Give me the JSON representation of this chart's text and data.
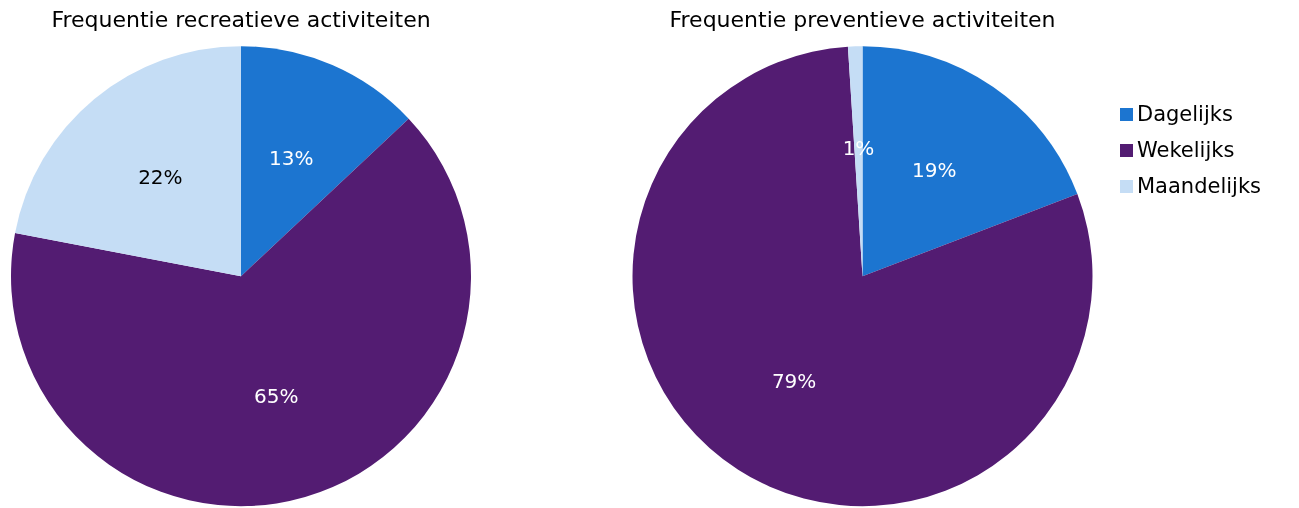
{
  "chart_data": [
    {
      "type": "pie",
      "title": "Frequentie recreatieve activiteiten",
      "categories": [
        null,
        null,
        null
      ],
      "values": [
        13,
        65,
        22
      ],
      "value_labels": [
        "13%",
        "65%",
        "22%"
      ],
      "colors": [
        "#1c75d0",
        "#531c72",
        "#c5ddf5"
      ],
      "legend": false
    },
    {
      "type": "pie",
      "title": "Frequentie preventieve activiteiten",
      "categories": [
        "Dagelijks",
        "Wekelijks",
        "Maandelijks"
      ],
      "values": [
        19,
        79,
        1
      ],
      "value_labels": [
        "19%",
        "79%",
        "1%"
      ],
      "colors": [
        "#1c75d0",
        "#531c72",
        "#c5ddf5"
      ],
      "legend": "right"
    }
  ]
}
